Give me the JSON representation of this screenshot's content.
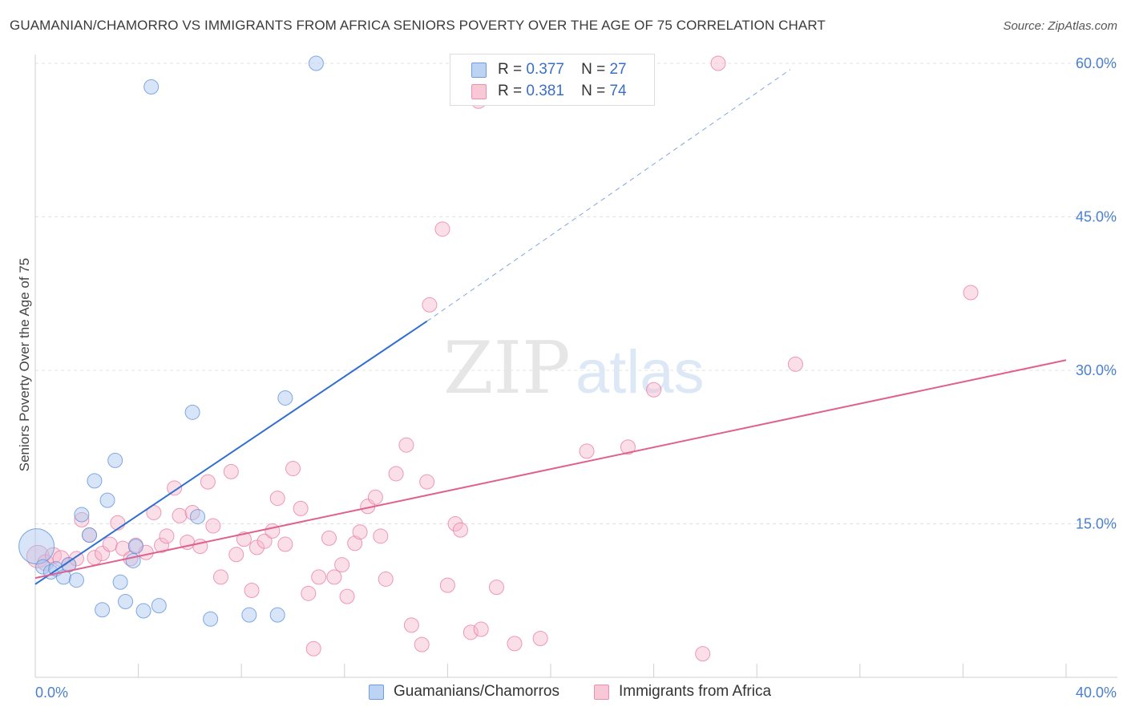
{
  "title": "GUAMANIAN/CHAMORRO VS IMMIGRANTS FROM AFRICA SENIORS POVERTY OVER THE AGE OF 75 CORRELATION CHART",
  "source": "Source: ZipAtlas.com",
  "watermark": {
    "zip": "ZIP",
    "atlas": "atlas"
  },
  "legend": {
    "rows": [
      {
        "r_label": "R =",
        "r_value": "0.377",
        "n_label": "N =",
        "n_value": "27"
      },
      {
        "r_label": "R =",
        "r_value": "0.381",
        "n_label": "N =",
        "n_value": "74"
      }
    ]
  },
  "bottom_legend": [
    "Guamanians/Chamorros",
    "Immigrants from Africa"
  ],
  "chart_data": {
    "type": "scatter",
    "title": "GUAMANIAN/CHAMORRO VS IMMIGRANTS FROM AFRICA SENIORS POVERTY OVER THE AGE OF 75 CORRELATION CHART",
    "xlabel": "",
    "ylabel": "Seniors Poverty Over the Age of 75",
    "xlim": [
      0,
      40
    ],
    "ylim": [
      0,
      60
    ],
    "x_tick_labels": [
      "0.0%",
      "40.0%"
    ],
    "y_ticks": [
      15,
      30,
      45,
      60
    ],
    "y_tick_labels": [
      "15.0%",
      "30.0%",
      "45.0%",
      "60.0%"
    ],
    "grid": true,
    "colors": {
      "blue": "#5b8fd9",
      "blue_fill": "#a9c6ef",
      "pink": "#e87aa0",
      "pink_fill": "#f6b8cb",
      "tick": "#4a7fd0"
    },
    "series": [
      {
        "name": "Guamanians/Chamorros",
        "color": "blue",
        "R": 0.377,
        "N": 27,
        "trend": {
          "x0": 0,
          "y0": 9.1,
          "x1": 15.2,
          "y1": 34.8,
          "dash_x1": 29.3,
          "dash_y1": 59.4
        },
        "points": [
          [
            0.05,
            12.8,
            22
          ],
          [
            0.3,
            10.8,
            9
          ],
          [
            0.6,
            10.3,
            9
          ],
          [
            0.8,
            10.6,
            9
          ],
          [
            1.1,
            9.8,
            9
          ],
          [
            1.3,
            11.0,
            9
          ],
          [
            1.6,
            9.5,
            9
          ],
          [
            1.8,
            15.9,
            9
          ],
          [
            2.1,
            13.9,
            9
          ],
          [
            2.3,
            19.2,
            9
          ],
          [
            2.6,
            6.6,
            9
          ],
          [
            2.8,
            17.3,
            9
          ],
          [
            3.1,
            21.2,
            9
          ],
          [
            3.3,
            9.3,
            9
          ],
          [
            3.5,
            7.4,
            9
          ],
          [
            3.8,
            11.4,
            9
          ],
          [
            3.9,
            12.8,
            9
          ],
          [
            4.2,
            6.5,
            9
          ],
          [
            4.5,
            57.7,
            9
          ],
          [
            4.8,
            7.0,
            9
          ],
          [
            6.1,
            25.9,
            9
          ],
          [
            6.3,
            15.7,
            9
          ],
          [
            6.8,
            5.7,
            9
          ],
          [
            8.3,
            6.1,
            9
          ],
          [
            9.7,
            27.3,
            9
          ],
          [
            9.4,
            6.1,
            9
          ],
          [
            10.9,
            60.0,
            9
          ]
        ]
      },
      {
        "name": "Immigrants from Africa",
        "color": "pink",
        "R": 0.381,
        "N": 74,
        "trend": {
          "x0": 0,
          "y0": 9.7,
          "x1": 40,
          "y1": 31.0
        },
        "points": [
          [
            0.1,
            11.8,
            14
          ],
          [
            0.4,
            11.2,
            10
          ],
          [
            0.7,
            11.9,
            10
          ],
          [
            1.0,
            11.6,
            10
          ],
          [
            1.3,
            11.0,
            9
          ],
          [
            1.6,
            11.6,
            9
          ],
          [
            1.8,
            15.4,
            9
          ],
          [
            2.1,
            13.9,
            9
          ],
          [
            2.3,
            11.7,
            9
          ],
          [
            2.6,
            12.1,
            9
          ],
          [
            2.9,
            13.0,
            9
          ],
          [
            3.2,
            15.1,
            9
          ],
          [
            3.4,
            12.6,
            9
          ],
          [
            3.7,
            11.6,
            9
          ],
          [
            3.9,
            12.9,
            9
          ],
          [
            4.3,
            12.2,
            9
          ],
          [
            4.6,
            16.1,
            9
          ],
          [
            4.9,
            12.9,
            9
          ],
          [
            5.1,
            13.8,
            9
          ],
          [
            5.4,
            18.5,
            9
          ],
          [
            5.6,
            15.8,
            9
          ],
          [
            5.9,
            13.2,
            9
          ],
          [
            6.1,
            16.1,
            9
          ],
          [
            6.4,
            12.8,
            9
          ],
          [
            6.7,
            19.1,
            9
          ],
          [
            6.9,
            14.8,
            9
          ],
          [
            7.2,
            9.8,
            9
          ],
          [
            7.6,
            20.1,
            9
          ],
          [
            7.8,
            12.0,
            9
          ],
          [
            8.1,
            13.5,
            9
          ],
          [
            8.4,
            8.5,
            9
          ],
          [
            8.6,
            12.7,
            9
          ],
          [
            8.9,
            13.3,
            9
          ],
          [
            9.2,
            14.3,
            9
          ],
          [
            9.4,
            17.5,
            9
          ],
          [
            9.7,
            13.0,
            9
          ],
          [
            10.0,
            20.4,
            9
          ],
          [
            10.3,
            16.5,
            9
          ],
          [
            10.6,
            8.2,
            9
          ],
          [
            10.8,
            2.8,
            9
          ],
          [
            11.0,
            9.8,
            9
          ],
          [
            11.4,
            13.6,
            9
          ],
          [
            11.6,
            9.8,
            9
          ],
          [
            11.9,
            11.0,
            9
          ],
          [
            12.1,
            7.9,
            9
          ],
          [
            12.4,
            13.1,
            9
          ],
          [
            12.6,
            14.2,
            9
          ],
          [
            12.9,
            16.7,
            9
          ],
          [
            13.2,
            17.6,
            9
          ],
          [
            13.4,
            13.8,
            9
          ],
          [
            13.6,
            9.6,
            9
          ],
          [
            14.0,
            19.9,
            9
          ],
          [
            14.4,
            22.7,
            9
          ],
          [
            14.6,
            5.1,
            9
          ],
          [
            15.0,
            3.2,
            9
          ],
          [
            15.2,
            19.1,
            9
          ],
          [
            15.3,
            36.4,
            9
          ],
          [
            15.8,
            43.8,
            9
          ],
          [
            16.0,
            9.0,
            9
          ],
          [
            16.3,
            15.0,
            9
          ],
          [
            16.5,
            14.4,
            9
          ],
          [
            16.9,
            4.4,
            9
          ],
          [
            17.2,
            56.3,
            9
          ],
          [
            17.3,
            4.7,
            9
          ],
          [
            17.9,
            8.8,
            9
          ],
          [
            18.6,
            3.3,
            9
          ],
          [
            19.6,
            3.8,
            9
          ],
          [
            21.4,
            22.1,
            9
          ],
          [
            23.0,
            22.5,
            9
          ],
          [
            24.0,
            28.1,
            9
          ],
          [
            25.9,
            2.3,
            9
          ],
          [
            26.5,
            60.0,
            9
          ],
          [
            29.5,
            30.6,
            9
          ],
          [
            36.3,
            37.6,
            9
          ]
        ]
      }
    ]
  }
}
